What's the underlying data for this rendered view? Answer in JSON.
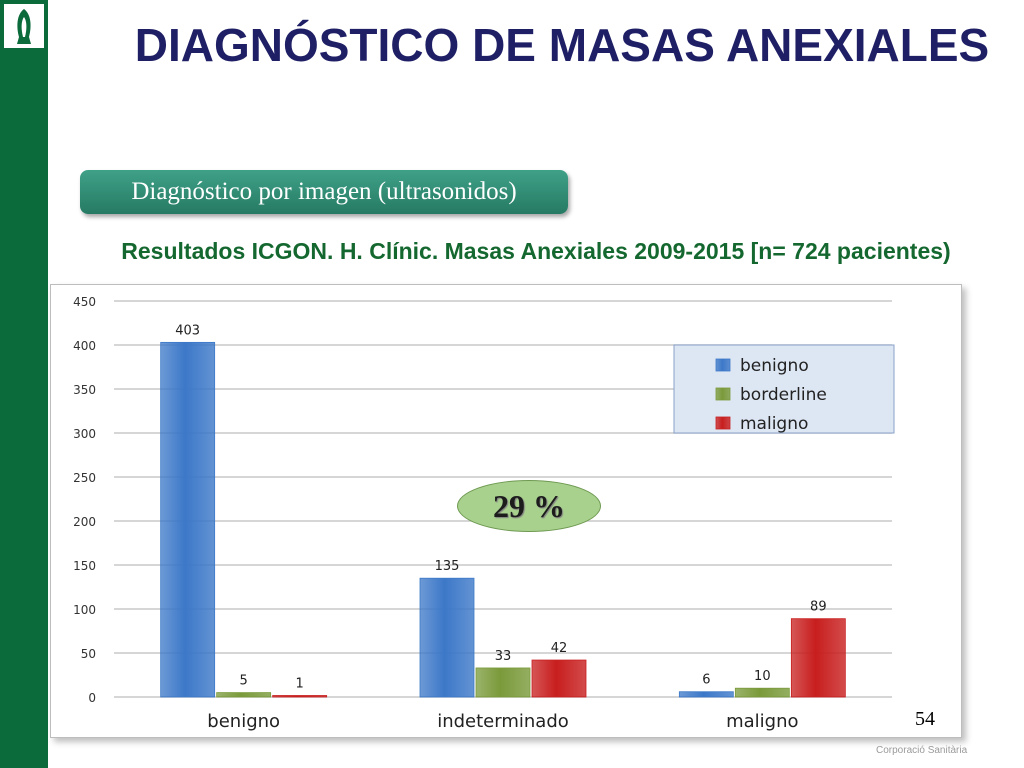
{
  "slide": {
    "title": "DIAGNÓSTICO DE MASAS ANEXIALES",
    "section_label": "Diagnóstico por imagen (ultrasonidos)",
    "subtitle": "Resultados ICGON. H. Clínic. Masas Anexiales 2009-2015 [n= 724 pacientes)",
    "badge_text": "29 %",
    "page_number": "54",
    "footer_text": "Corporació Sanitària"
  },
  "colors": {
    "brand_green": "#0b6b3a",
    "title_navy": "#1f1f66",
    "subtitle_green": "#14682f"
  },
  "chart_data": {
    "type": "bar",
    "title": "",
    "xlabel": "",
    "ylabel": "",
    "categories": [
      "benigno",
      "indeterminado",
      "maligno"
    ],
    "series": [
      {
        "name": "benigno",
        "values": [
          403,
          135,
          6
        ],
        "color": "#3c78c8"
      },
      {
        "name": "borderline",
        "values": [
          5,
          33,
          10
        ],
        "color": "#7a9a3a"
      },
      {
        "name": "maligno",
        "values": [
          1,
          42,
          89
        ],
        "color": "#c81e1e"
      }
    ],
    "yticks": [
      0,
      50,
      100,
      150,
      200,
      250,
      300,
      350,
      400,
      450
    ],
    "ylim": [
      0,
      450
    ],
    "grid": true,
    "legend_position": "top-right",
    "data_labels": true
  }
}
